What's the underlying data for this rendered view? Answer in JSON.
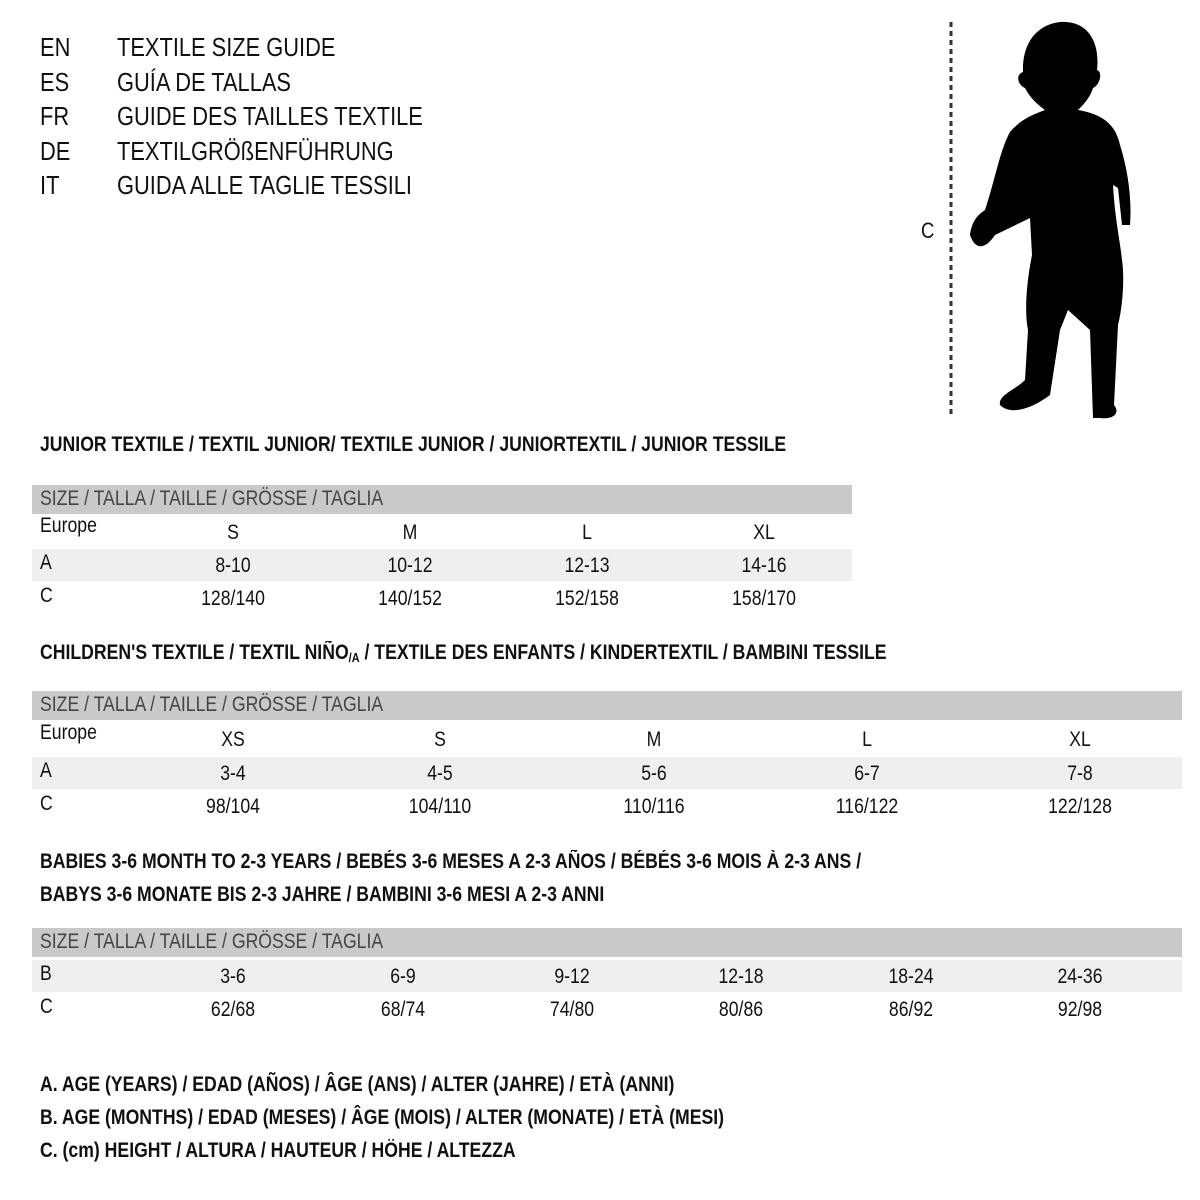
{
  "languages": [
    {
      "code": "EN",
      "title": "TEXTILE SIZE GUIDE"
    },
    {
      "code": "ES",
      "title": "GUÍA DE TALLAS"
    },
    {
      "code": "FR",
      "title": "GUIDE DES TAILLES TEXTILE"
    },
    {
      "code": "DE",
      "title": "TEXTILGRÖßENFÜHRUNG"
    },
    {
      "code": "IT",
      "title": "GUIDA ALLE TAGLIE TESSILI"
    }
  ],
  "figure": {
    "measure_label": "C"
  },
  "size_header": "SIZE / TALLA / TAILLE / GRÖSSE / TAGLIA",
  "junior": {
    "title": "JUNIOR TEXTILE / TEXTIL JUNIOR/ TEXTILE JUNIOR / JUNIORTEXTIL / JUNIOR TESSILE",
    "rows": [
      {
        "label": "Europe",
        "values": [
          "S",
          "M",
          "L",
          "XL"
        ]
      },
      {
        "label": "A",
        "values": [
          "8-10",
          "10-12",
          "12-13",
          "14-16"
        ]
      },
      {
        "label": "C",
        "values": [
          "128/140",
          "140/152",
          "152/158",
          "158/170"
        ]
      }
    ]
  },
  "children": {
    "title_a": "CHILDREN'S TEXTILE / TEXTIL NIÑO",
    "title_sub": "/A",
    "title_b": " / TEXTILE DES ENFANTS / KINDERTEXTIL / BAMBINI TESSILE",
    "rows": [
      {
        "label": "Europe",
        "values": [
          "XS",
          "S",
          "M",
          "L",
          "XL"
        ]
      },
      {
        "label": "A",
        "values": [
          "3-4",
          "4-5",
          "5-6",
          "6-7",
          "7-8"
        ]
      },
      {
        "label": "C",
        "values": [
          "98/104",
          "104/110",
          "110/116",
          "116/122",
          "122/128"
        ]
      }
    ]
  },
  "babies": {
    "title_line1": "BABIES 3-6 MONTH TO 2-3 YEARS / BEBÉS 3-6 MESES A 2-3 AÑOS / BÉBÉS 3-6 MOIS À 2-3 ANS /",
    "title_line2": "BABYS 3-6 MONATE BIS 2-3 JAHRE / BAMBINI 3-6 MESI A 2-3 ANNI",
    "rows": [
      {
        "label": "B",
        "values": [
          "3-6",
          "6-9",
          "9-12",
          "12-18",
          "18-24",
          "24-36"
        ]
      },
      {
        "label": "C",
        "values": [
          "62/68",
          "68/74",
          "74/80",
          "80/86",
          "86/92",
          "92/98"
        ]
      }
    ]
  },
  "legend": [
    "A. AGE (YEARS) / EDAD (AÑOS) / ÂGE (ANS) / ALTER (JAHRE) / ETÀ (ANNI)",
    "B. AGE (MONTHS) / EDAD (MESES) / ÂGE (MOIS) / ALTER (MONATE) / ETÀ (MESI)",
    "C. (cm) HEIGHT / ALTURA / HAUTEUR / HÖHE / ALTEZZA"
  ],
  "colors": {
    "header_bar": "#c9c9c9",
    "row_shade": "#efefef",
    "text": "#111111"
  }
}
